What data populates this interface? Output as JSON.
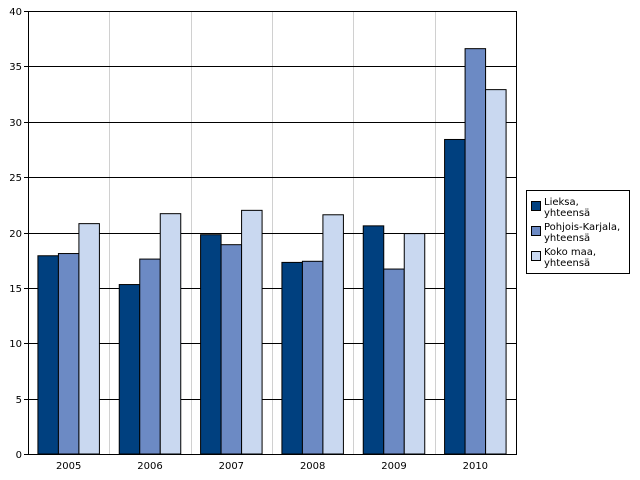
{
  "chart_data": {
    "type": "bar",
    "title": "",
    "xlabel": "",
    "ylabel": "",
    "ylim": [
      0,
      40
    ],
    "yticks": [
      "0",
      "5",
      "10",
      "15",
      "20",
      "25",
      "30",
      "35",
      "40"
    ],
    "categories": [
      "2005",
      "2006",
      "2007",
      "2008",
      "2009",
      "2010"
    ],
    "grid": true,
    "legend_position": "right",
    "series": [
      {
        "name": "Lieksa,\nyhteensä",
        "color": "#00407f",
        "values": [
          17.9,
          15.3,
          19.8,
          17.3,
          20.6,
          28.4
        ]
      },
      {
        "name": "Pohjois-Karjala,\nyhteensä",
        "color": "#6c8ac4",
        "values": [
          18.1,
          17.6,
          18.9,
          17.4,
          16.7,
          36.6
        ]
      },
      {
        "name": "Koko maa,\nyhteensä",
        "color": "#c9d8f0",
        "values": [
          20.8,
          21.7,
          22.0,
          21.6,
          19.9,
          32.9
        ]
      }
    ]
  }
}
